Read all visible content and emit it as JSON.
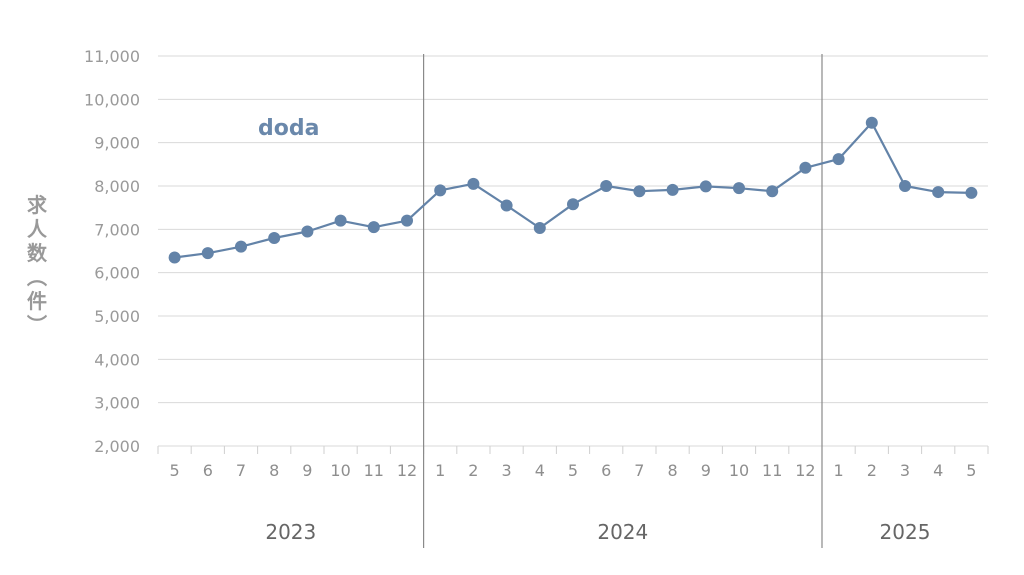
{
  "chart_data": {
    "type": "line",
    "ylabel": "求人数（件）",
    "ylim": [
      2000,
      11000
    ],
    "yticks": [
      2000,
      3000,
      4000,
      5000,
      6000,
      7000,
      8000,
      9000,
      10000,
      11000
    ],
    "ytick_labels": [
      "2,000",
      "3,000",
      "4,000",
      "5,000",
      "6,000",
      "7,000",
      "8,000",
      "9,000",
      "10,000",
      "11,000"
    ],
    "grid": true,
    "months": [
      "5",
      "6",
      "7",
      "8",
      "9",
      "10",
      "11",
      "12",
      "1",
      "2",
      "3",
      "4",
      "5",
      "6",
      "7",
      "8",
      "9",
      "10",
      "11",
      "12",
      "1",
      "2",
      "3",
      "4",
      "5"
    ],
    "years": [
      {
        "label": "2023",
        "start": 0,
        "count": 8
      },
      {
        "label": "2024",
        "start": 8,
        "count": 12
      },
      {
        "label": "2025",
        "start": 20,
        "count": 5
      }
    ],
    "series": [
      {
        "name": "doda",
        "color": "#6383a8",
        "values": [
          6350,
          6450,
          6600,
          6800,
          6950,
          7200,
          7050,
          7200,
          7900,
          8050,
          7550,
          7030,
          7580,
          8000,
          7880,
          7910,
          7990,
          7950,
          7880,
          8420,
          8620,
          9460,
          8000,
          7860,
          7840
        ]
      }
    ]
  }
}
